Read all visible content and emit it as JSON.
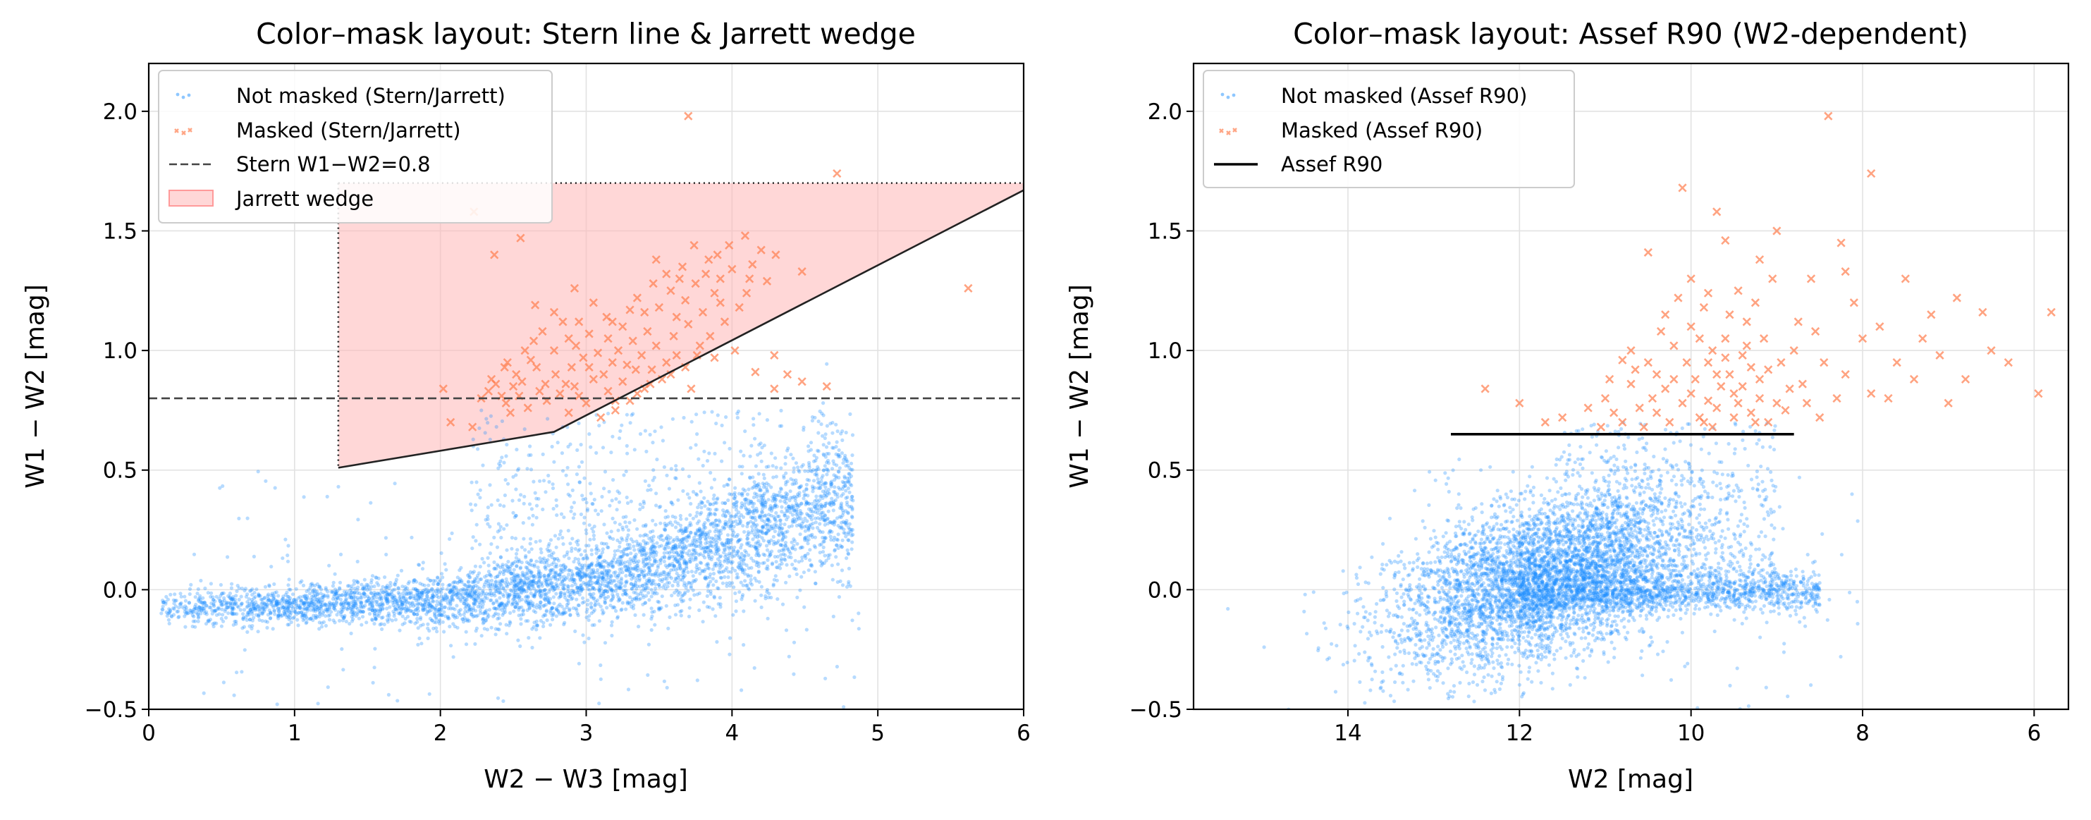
{
  "chart_data": [
    {
      "type": "scatter",
      "title": "Color–mask layout: Stern line & Jarrett wedge",
      "xlabel": "W2 − W3 [mag]",
      "ylabel": "W1 − W2 [mag]",
      "xlim": [
        0,
        6
      ],
      "ylim": [
        -0.5,
        2.2
      ],
      "xticks": [
        "0",
        "1",
        "2",
        "3",
        "4",
        "5",
        "6"
      ],
      "yticks": [
        "−0.5",
        "0.0",
        "0.5",
        "1.0",
        "1.5",
        "2.0"
      ],
      "grid": true,
      "legend_position": "upper-left",
      "legend": {
        "not_masked": "Not masked (Stern/Jarrett)",
        "masked": "Masked (Stern/Jarrett)",
        "stern": "Stern W1−W2=0.8",
        "wedge": "Jarrett wedge"
      },
      "colors": {
        "not_masked": "#1e90ff",
        "masked": "#ff7f50",
        "stern": "#444444",
        "wedge_fill": "#ffb6b6",
        "wedge_edge": "#222222"
      },
      "stern_line_y": 0.8,
      "jarrett_wedge": {
        "x_left": 1.3,
        "y_top": 1.7,
        "boundary": [
          [
            1.3,
            0.51
          ],
          [
            2.78,
            0.66
          ],
          [
            6.0,
            1.67
          ]
        ]
      },
      "not_masked_density": {
        "bands": [
          [
            0.1,
            -0.08,
            0.03
          ],
          [
            0.5,
            -0.07,
            0.04
          ],
          [
            1.0,
            -0.07,
            0.04
          ],
          [
            1.5,
            -0.05,
            0.05
          ],
          [
            2.0,
            -0.04,
            0.06
          ],
          [
            2.5,
            -0.01,
            0.07
          ],
          [
            3.0,
            0.03,
            0.08
          ],
          [
            3.5,
            0.1,
            0.09
          ],
          [
            4.0,
            0.2,
            0.12
          ],
          [
            4.4,
            0.3,
            0.15
          ],
          [
            4.75,
            0.38,
            0.16
          ]
        ],
        "dense_count": 4200,
        "cloud": {
          "x_range": [
            2.2,
            4.8
          ],
          "y_range": [
            0.05,
            0.75
          ],
          "count": 650
        },
        "sparse_count": 160
      },
      "masked_points": [
        [
          3.7,
          1.98
        ],
        [
          4.72,
          1.74
        ],
        [
          5.62,
          1.26
        ],
        [
          2.23,
          1.58
        ],
        [
          2.55,
          1.47
        ],
        [
          2.37,
          1.4
        ],
        [
          4.09,
          1.48
        ],
        [
          4.14,
          1.36
        ],
        [
          4.48,
          1.33
        ],
        [
          4.24,
          1.29
        ],
        [
          3.9,
          1.4
        ],
        [
          3.55,
          1.32
        ],
        [
          3.66,
          1.35
        ],
        [
          3.4,
          1.16
        ],
        [
          3.14,
          1.14
        ],
        [
          3.92,
          1.3
        ],
        [
          2.65,
          1.19
        ],
        [
          2.92,
          1.26
        ],
        [
          2.46,
          0.95
        ],
        [
          2.93,
          1.02
        ],
        [
          2.02,
          0.84
        ],
        [
          2.07,
          0.7
        ],
        [
          4.65,
          0.85
        ],
        [
          4.29,
          0.98
        ],
        [
          4.16,
          0.91
        ],
        [
          4.29,
          0.84
        ],
        [
          3.72,
          0.84
        ],
        [
          2.33,
          0.83
        ],
        [
          2.42,
          0.81
        ],
        [
          2.56,
          0.87
        ],
        [
          2.66,
          0.93
        ],
        [
          2.79,
          0.9
        ],
        [
          2.92,
          0.85
        ],
        [
          3.05,
          0.88
        ],
        [
          3.15,
          0.83
        ],
        [
          3.25,
          0.87
        ],
        [
          3.35,
          0.82
        ],
        [
          3.44,
          0.86
        ],
        [
          2.45,
          0.78
        ],
        [
          2.6,
          0.76
        ],
        [
          2.73,
          0.79
        ],
        [
          2.88,
          0.74
        ],
        [
          3.0,
          0.78
        ],
        [
          3.1,
          0.72
        ],
        [
          3.2,
          0.75
        ],
        [
          3.3,
          0.79
        ],
        [
          3.45,
          0.92
        ],
        [
          3.55,
          0.95
        ],
        [
          3.62,
          0.98
        ],
        [
          3.78,
          1.02
        ],
        [
          3.85,
          1.06
        ],
        [
          3.95,
          1.12
        ],
        [
          4.05,
          1.18
        ],
        [
          4.1,
          1.24
        ],
        [
          3.6,
          1.06
        ],
        [
          3.7,
          1.11
        ],
        [
          3.8,
          1.16
        ],
        [
          3.48,
          1.02
        ],
        [
          3.38,
          0.98
        ],
        [
          3.28,
          0.94
        ],
        [
          3.18,
          0.95
        ],
        [
          3.08,
          0.99
        ],
        [
          2.98,
          0.97
        ],
        [
          2.88,
          1.05
        ],
        [
          2.78,
          1.0
        ],
        [
          2.7,
          1.08
        ],
        [
          2.95,
          1.12
        ],
        [
          3.05,
          1.2
        ],
        [
          3.15,
          1.05
        ],
        [
          3.25,
          1.1
        ],
        [
          3.35,
          1.22
        ],
        [
          3.5,
          1.18
        ],
        [
          3.58,
          1.25
        ],
        [
          3.68,
          1.21
        ],
        [
          3.75,
          1.28
        ],
        [
          3.88,
          1.24
        ],
        [
          4.0,
          1.34
        ],
        [
          3.22,
          1.0
        ],
        [
          3.32,
          1.04
        ],
        [
          3.42,
          1.08
        ],
        [
          2.52,
          0.9
        ],
        [
          2.62,
          0.96
        ],
        [
          2.72,
          0.86
        ],
        [
          2.82,
          0.82
        ],
        [
          2.38,
          0.86
        ],
        [
          2.48,
          0.74
        ],
        [
          2.58,
          1.0
        ],
        [
          2.84,
          1.12
        ],
        [
          3.12,
          0.9
        ],
        [
          2.22,
          0.68
        ],
        [
          3.4,
          0.84
        ],
        [
          3.52,
          0.88
        ],
        [
          4.2,
          1.42
        ],
        [
          3.98,
          1.44
        ],
        [
          3.84,
          1.38
        ],
        [
          3.74,
          1.44
        ],
        [
          3.64,
          1.3
        ],
        [
          3.46,
          1.28
        ],
        [
          3.3,
          1.17
        ],
        [
          3.02,
          1.07
        ],
        [
          2.9,
          0.93
        ],
        [
          2.68,
          0.83
        ],
        [
          2.54,
          0.81
        ],
        [
          3.58,
          0.9
        ],
        [
          3.68,
          0.93
        ],
        [
          3.88,
          0.97
        ],
        [
          4.02,
          1.0
        ],
        [
          4.38,
          0.9
        ],
        [
          4.48,
          0.87
        ],
        [
          2.35,
          0.88
        ],
        [
          2.44,
          0.93
        ],
        [
          2.95,
          0.81
        ],
        [
          3.2,
          0.79
        ],
        [
          3.34,
          0.92
        ],
        [
          3.02,
          0.93
        ],
        [
          2.86,
          0.86
        ],
        [
          3.76,
          0.98
        ],
        [
          3.92,
          1.2
        ],
        [
          4.12,
          1.3
        ],
        [
          4.3,
          1.4
        ],
        [
          3.48,
          1.38
        ],
        [
          3.18,
          1.12
        ],
        [
          2.78,
          1.16
        ],
        [
          2.64,
          1.04
        ],
        [
          2.5,
          0.85
        ],
        [
          2.28,
          0.8
        ],
        [
          3.62,
          1.14
        ],
        [
          3.82,
          1.32
        ]
      ]
    },
    {
      "type": "scatter",
      "title": "Color–mask layout: Assef R90 (W2-dependent)",
      "xlabel": "W2 [mag]",
      "ylabel": "W1 − W2 [mag]",
      "xlim": [
        15.8,
        5.6
      ],
      "ylim": [
        -0.5,
        2.2
      ],
      "xticks": [
        "14",
        "12",
        "10",
        "8",
        "6"
      ],
      "yticks": [
        "−0.5",
        "0.0",
        "0.5",
        "1.0",
        "1.5",
        "2.0"
      ],
      "grid": true,
      "legend_position": "upper-left",
      "legend": {
        "not_masked": "Not masked (Assef R90)",
        "masked": "Masked (Assef R90)",
        "assef": "Assef R90"
      },
      "colors": {
        "not_masked": "#1e90ff",
        "masked": "#ff7f50",
        "assef": "#000000"
      },
      "assef_line": {
        "x_range": [
          12.8,
          8.8
        ],
        "y": 0.65
      },
      "not_masked_density": {
        "main_blob": {
          "center": [
            11.7,
            0.05
          ],
          "spread": [
            0.9,
            0.16
          ],
          "count": 4300
        },
        "red_sequence": {
          "x_range": [
            8.5,
            12.0
          ],
          "y_center": -0.02,
          "y_spread": 0.04,
          "count": 1200
        },
        "upper_cloud": {
          "x_range": [
            9.0,
            11.5
          ],
          "y_range": [
            0.05,
            0.7
          ],
          "count": 500
        },
        "sparse_count": 120,
        "outliers": [
          [
            15.4,
            -0.08
          ],
          [
            14.5,
            -0.02
          ],
          [
            14.4,
            -0.01
          ]
        ]
      },
      "masked_points": [
        [
          8.4,
          1.98
        ],
        [
          7.9,
          1.74
        ],
        [
          10.1,
          1.68
        ],
        [
          9.7,
          1.58
        ],
        [
          9.6,
          1.46
        ],
        [
          9.2,
          1.38
        ],
        [
          10.5,
          1.41
        ],
        [
          10.0,
          1.3
        ],
        [
          9.8,
          1.24
        ],
        [
          8.6,
          1.3
        ],
        [
          8.2,
          1.33
        ],
        [
          7.5,
          1.3
        ],
        [
          6.9,
          1.22
        ],
        [
          6.6,
          1.16
        ],
        [
          5.8,
          1.16
        ],
        [
          7.3,
          1.05
        ],
        [
          6.5,
          1.0
        ],
        [
          6.3,
          0.95
        ],
        [
          5.95,
          0.82
        ],
        [
          7.0,
          0.78
        ],
        [
          7.9,
          0.82
        ],
        [
          8.2,
          0.9
        ],
        [
          8.7,
          0.86
        ],
        [
          8.9,
          0.75
        ],
        [
          10.8,
          0.7
        ],
        [
          11.5,
          0.72
        ],
        [
          11.0,
          0.8
        ],
        [
          10.4,
          0.9
        ],
        [
          10.2,
          1.02
        ],
        [
          10.0,
          1.1
        ],
        [
          9.8,
          0.95
        ],
        [
          9.6,
          1.05
        ],
        [
          9.4,
          0.98
        ],
        [
          9.2,
          0.88
        ],
        [
          9.5,
          0.82
        ],
        [
          9.7,
          0.76
        ],
        [
          9.9,
          0.72
        ],
        [
          10.1,
          0.78
        ],
        [
          10.3,
          0.84
        ],
        [
          9.3,
          0.74
        ],
        [
          9.1,
          0.7
        ],
        [
          9.0,
          0.78
        ],
        [
          10.6,
          0.76
        ],
        [
          10.7,
          0.86
        ],
        [
          10.5,
          0.95
        ],
        [
          10.25,
          0.7
        ],
        [
          9.75,
          0.68
        ],
        [
          9.55,
          0.9
        ],
        [
          9.35,
          1.12
        ],
        [
          9.15,
          1.05
        ],
        [
          8.95,
          0.95
        ],
        [
          8.8,
          1.0
        ],
        [
          8.55,
          1.08
        ],
        [
          8.45,
          0.95
        ],
        [
          8.3,
          0.8
        ],
        [
          8.1,
          1.2
        ],
        [
          7.8,
          1.1
        ],
        [
          7.6,
          0.95
        ],
        [
          7.4,
          0.88
        ],
        [
          7.2,
          1.15
        ],
        [
          8.0,
          1.05
        ],
        [
          9.85,
          1.18
        ],
        [
          10.15,
          1.22
        ],
        [
          9.45,
          1.25
        ],
        [
          9.25,
          1.2
        ],
        [
          9.05,
          1.3
        ],
        [
          10.35,
          1.08
        ],
        [
          10.55,
          0.68
        ],
        [
          10.9,
          0.74
        ],
        [
          11.2,
          0.76
        ],
        [
          9.65,
          0.85
        ],
        [
          9.95,
          0.88
        ],
        [
          10.05,
          0.95
        ],
        [
          9.75,
          1.0
        ],
        [
          9.5,
          0.72
        ],
        [
          9.4,
          0.85
        ],
        [
          9.2,
          0.8
        ],
        [
          10.45,
          0.8
        ],
        [
          10.65,
          0.92
        ],
        [
          10.8,
          0.96
        ],
        [
          9.9,
          1.05
        ],
        [
          9.6,
          0.97
        ],
        [
          9.3,
          0.93
        ],
        [
          8.85,
          0.84
        ],
        [
          8.65,
          0.78
        ],
        [
          8.5,
          0.72
        ],
        [
          10.0,
          0.82
        ],
        [
          9.8,
          0.79
        ],
        [
          9.1,
          0.92
        ],
        [
          8.75,
          1.12
        ],
        [
          7.7,
          0.8
        ],
        [
          7.1,
          0.98
        ],
        [
          6.8,
          0.88
        ],
        [
          8.25,
          1.45
        ],
        [
          9.0,
          1.5
        ],
        [
          10.3,
          1.15
        ],
        [
          11.05,
          0.68
        ],
        [
          11.7,
          0.7
        ],
        [
          12.0,
          0.78
        ],
        [
          12.4,
          0.84
        ],
        [
          10.95,
          0.88
        ],
        [
          10.7,
          1.0
        ],
        [
          9.55,
          1.15
        ],
        [
          9.35,
          1.02
        ],
        [
          9.7,
          0.9
        ],
        [
          9.45,
          0.78
        ],
        [
          9.25,
          0.7
        ],
        [
          9.85,
          0.7
        ],
        [
          10.2,
          0.88
        ],
        [
          10.4,
          0.74
        ]
      ]
    }
  ]
}
